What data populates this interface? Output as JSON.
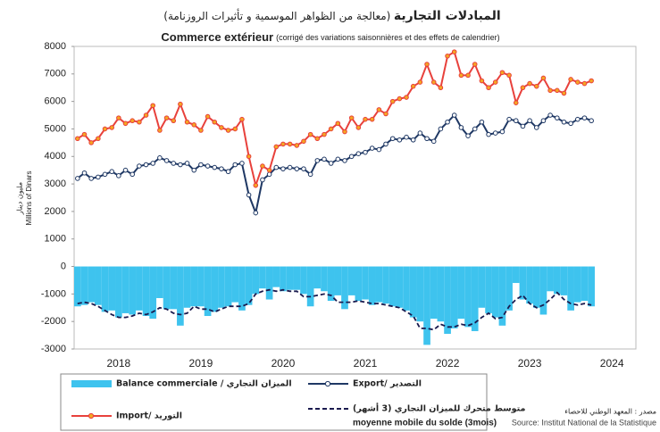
{
  "chart_data": {
    "type": "combo",
    "title": {
      "bold": "المبادلات التجارية",
      "rest": "(معالجة من الظواهر الموسمية و تأثيرات الروزنامة)"
    },
    "subtitle": {
      "bold": "Commerce extérieur",
      "rest": "(corrigé des variations saisonnières et des effets de calendrier)"
    },
    "y_label": {
      "ar": "مليون دينار",
      "fr": "Millions of Dinars"
    },
    "source": {
      "ar": "مصدر : المعهد الوطني للاحصاء",
      "fr": "Source: Institut National de la Statistique"
    },
    "categories": [
      null,
      null,
      null,
      null,
      null,
      null,
      "2018",
      null,
      null,
      null,
      null,
      null,
      null,
      null,
      null,
      null,
      null,
      null,
      "2019",
      null,
      null,
      null,
      null,
      null,
      null,
      null,
      null,
      null,
      null,
      null,
      "2020",
      null,
      null,
      null,
      null,
      null,
      null,
      null,
      null,
      null,
      null,
      null,
      "2021",
      null,
      null,
      null,
      null,
      null,
      null,
      null,
      null,
      null,
      null,
      null,
      "2022",
      null,
      null,
      null,
      null,
      null,
      null,
      null,
      null,
      null,
      null,
      null,
      "2023",
      null,
      null,
      null,
      null,
      null,
      null,
      null,
      null,
      null,
      null,
      null,
      "2024",
      null,
      null,
      null
    ],
    "ylim": [
      -3000,
      8000
    ],
    "yticks": [
      -3000,
      -2000,
      -1000,
      0,
      1000,
      2000,
      3000,
      4000,
      5000,
      6000,
      7000,
      8000
    ],
    "grid": false,
    "series": [
      {
        "name": "Balance commerciale / الميزان التجاري",
        "kind": "bar",
        "color": "#3ec3ee",
        "values": [
          -1450,
          -1400,
          -1300,
          -1400,
          -1650,
          -1600,
          -1850,
          -1700,
          -1750,
          -1600,
          -1800,
          -1900,
          -1150,
          -1550,
          -1550,
          -2150,
          -1500,
          -1450,
          -1450,
          -1800,
          -1650,
          -1500,
          -1450,
          -1300,
          -1600,
          -1400,
          -1000,
          -800,
          -1200,
          -750,
          -900,
          -850,
          -850,
          -1000,
          -1450,
          -800,
          -900,
          -1250,
          -1050,
          -1550,
          -1050,
          -1250,
          -1200,
          -1400,
          -1300,
          -1350,
          -1450,
          -1500,
          -1600,
          -1850,
          -2000,
          -2850,
          -1900,
          -2000,
          -2450,
          -2250,
          -1900,
          -2200,
          -2350,
          -1500,
          -1700,
          -1850,
          -2150,
          -1600,
          -600,
          -1200,
          -1350,
          -1500,
          -1750,
          -900,
          -1000,
          -1050,
          -1600,
          -1300,
          -1250,
          -1450,
          null,
          null,
          null,
          null,
          null,
          null
        ]
      },
      {
        "name": "Export/ التصدير",
        "kind": "line",
        "color": "#1f3864",
        "marker": "#ffffff",
        "values": [
          3200,
          3400,
          3200,
          3250,
          3350,
          3450,
          3300,
          3500,
          3350,
          3650,
          3700,
          3750,
          3950,
          3850,
          3750,
          3700,
          3750,
          3500,
          3700,
          3650,
          3600,
          3550,
          3450,
          3700,
          3750,
          2600,
          1950,
          3150,
          3350,
          3600,
          3550,
          3600,
          3550,
          3550,
          3350,
          3850,
          3900,
          3750,
          3900,
          3850,
          4000,
          4100,
          4150,
          4300,
          4250,
          4450,
          4650,
          4600,
          4700,
          4600,
          4850,
          4650,
          4550,
          5000,
          5250,
          5500,
          5050,
          4750,
          5000,
          5250,
          4800,
          4850,
          4900,
          5350,
          5300,
          5100,
          5300,
          5050,
          5300,
          5500,
          5400,
          5250,
          5200,
          5350,
          5400,
          5300,
          null,
          null,
          null,
          null,
          null,
          null
        ]
      },
      {
        "name": "Import/ التوريد",
        "kind": "line",
        "color": "#e8413c",
        "marker": "#f5a623",
        "values": [
          4650,
          4800,
          4500,
          4650,
          5000,
          5050,
          5400,
          5200,
          5300,
          5250,
          5500,
          5850,
          4950,
          5400,
          5300,
          5900,
          5250,
          5150,
          4950,
          5450,
          5250,
          5050,
          4950,
          5000,
          5350,
          4000,
          2950,
          3650,
          3500,
          4350,
          4450,
          4450,
          4400,
          4550,
          4800,
          4650,
          4800,
          5000,
          5200,
          4900,
          5400,
          5050,
          5350,
          5350,
          5700,
          5550,
          6000,
          6100,
          6150,
          6550,
          6700,
          7350,
          6700,
          6500,
          7650,
          7800,
          6950,
          6950,
          7350,
          6750,
          6500,
          6700,
          7050,
          6950,
          5950,
          6500,
          6650,
          6550,
          6850,
          6400,
          6400,
          6300,
          6800,
          6700,
          6650,
          6750,
          null,
          null,
          null,
          null,
          null,
          null
        ]
      },
      {
        "name": "متوسط متحرك للميزان التجاري (3 أشهر)",
        "name_fr": "moyenne mobile du solde (3mois)",
        "kind": "line",
        "dash": true,
        "color": "#1a1a4e",
        "values": [
          -1350,
          -1300,
          -1350,
          -1450,
          -1600,
          -1750,
          -1850,
          -1850,
          -1800,
          -1700,
          -1750,
          -1650,
          -1500,
          -1550,
          -1700,
          -1750,
          -1700,
          -1450,
          -1550,
          -1550,
          -1650,
          -1550,
          -1450,
          -1450,
          -1450,
          -1350,
          -1000,
          -900,
          -850,
          -900,
          -850,
          -900,
          -900,
          -1100,
          -1100,
          -1050,
          -1000,
          -1050,
          -1300,
          -1300,
          -1300,
          -1250,
          -1300,
          -1350,
          -1350,
          -1400,
          -1450,
          -1500,
          -1650,
          -1800,
          -2250,
          -2250,
          -2300,
          -2100,
          -2200,
          -2200,
          -2100,
          -2150,
          -2050,
          -1850,
          -1700,
          -1900,
          -1850,
          -1450,
          -1200,
          -1050,
          -1350,
          -1500,
          -1400,
          -1200,
          -950,
          -1200,
          -1350,
          -1400,
          -1350,
          -1400,
          null,
          null,
          null,
          null,
          null,
          null
        ]
      }
    ]
  }
}
